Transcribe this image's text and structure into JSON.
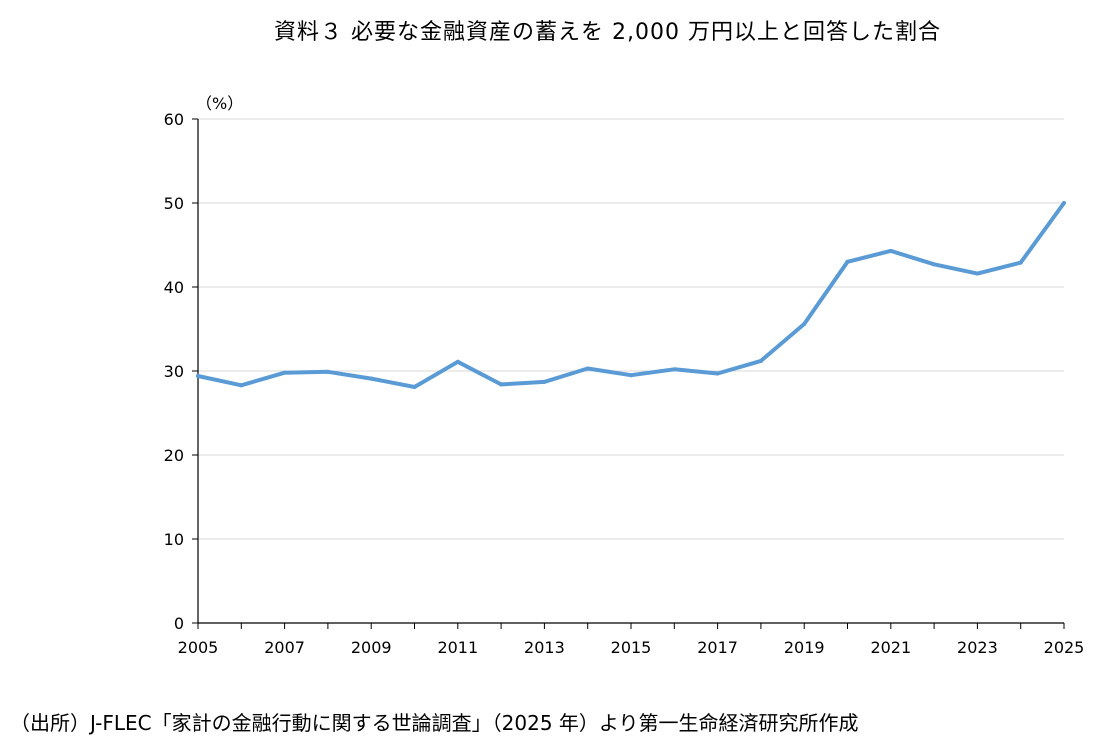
{
  "title": "資料３ 必要な金融資産の蓄えを 2,000 万円以上と回答した割合",
  "source": "（出所）J-FLEC「家計の金融行動に関する世論調査」（2025 年）より第一生命経済研究所作成",
  "chart_data": {
    "type": "line",
    "title": "資料３ 必要な金融資産の蓄えを 2,000 万円以上と回答した割合",
    "unit_label": "（%）",
    "xlabel": "",
    "ylabel": "",
    "xlim": [
      2005,
      2025
    ],
    "ylim": [
      0,
      60
    ],
    "yticks": [
      0,
      10,
      20,
      30,
      40,
      50,
      60
    ],
    "xticks": [
      2005,
      2007,
      2009,
      2011,
      2013,
      2015,
      2017,
      2019,
      2021,
      2023,
      2025
    ],
    "grid": "horizontal",
    "legend": "none",
    "color": "#5b9bd5",
    "series": [
      {
        "x": [
          2005,
          2006,
          2007,
          2008,
          2009,
          2010,
          2011,
          2012,
          2013,
          2014,
          2015,
          2016,
          2017,
          2018,
          2019,
          2020,
          2021,
          2022,
          2023,
          2024,
          2025
        ],
        "values": [
          29.4,
          28.3,
          29.8,
          29.9,
          29.1,
          28.1,
          31.1,
          28.4,
          28.7,
          30.3,
          29.5,
          30.2,
          29.7,
          31.2,
          35.6,
          43.0,
          44.3,
          42.7,
          41.6,
          42.9,
          50.0
        ]
      }
    ]
  }
}
